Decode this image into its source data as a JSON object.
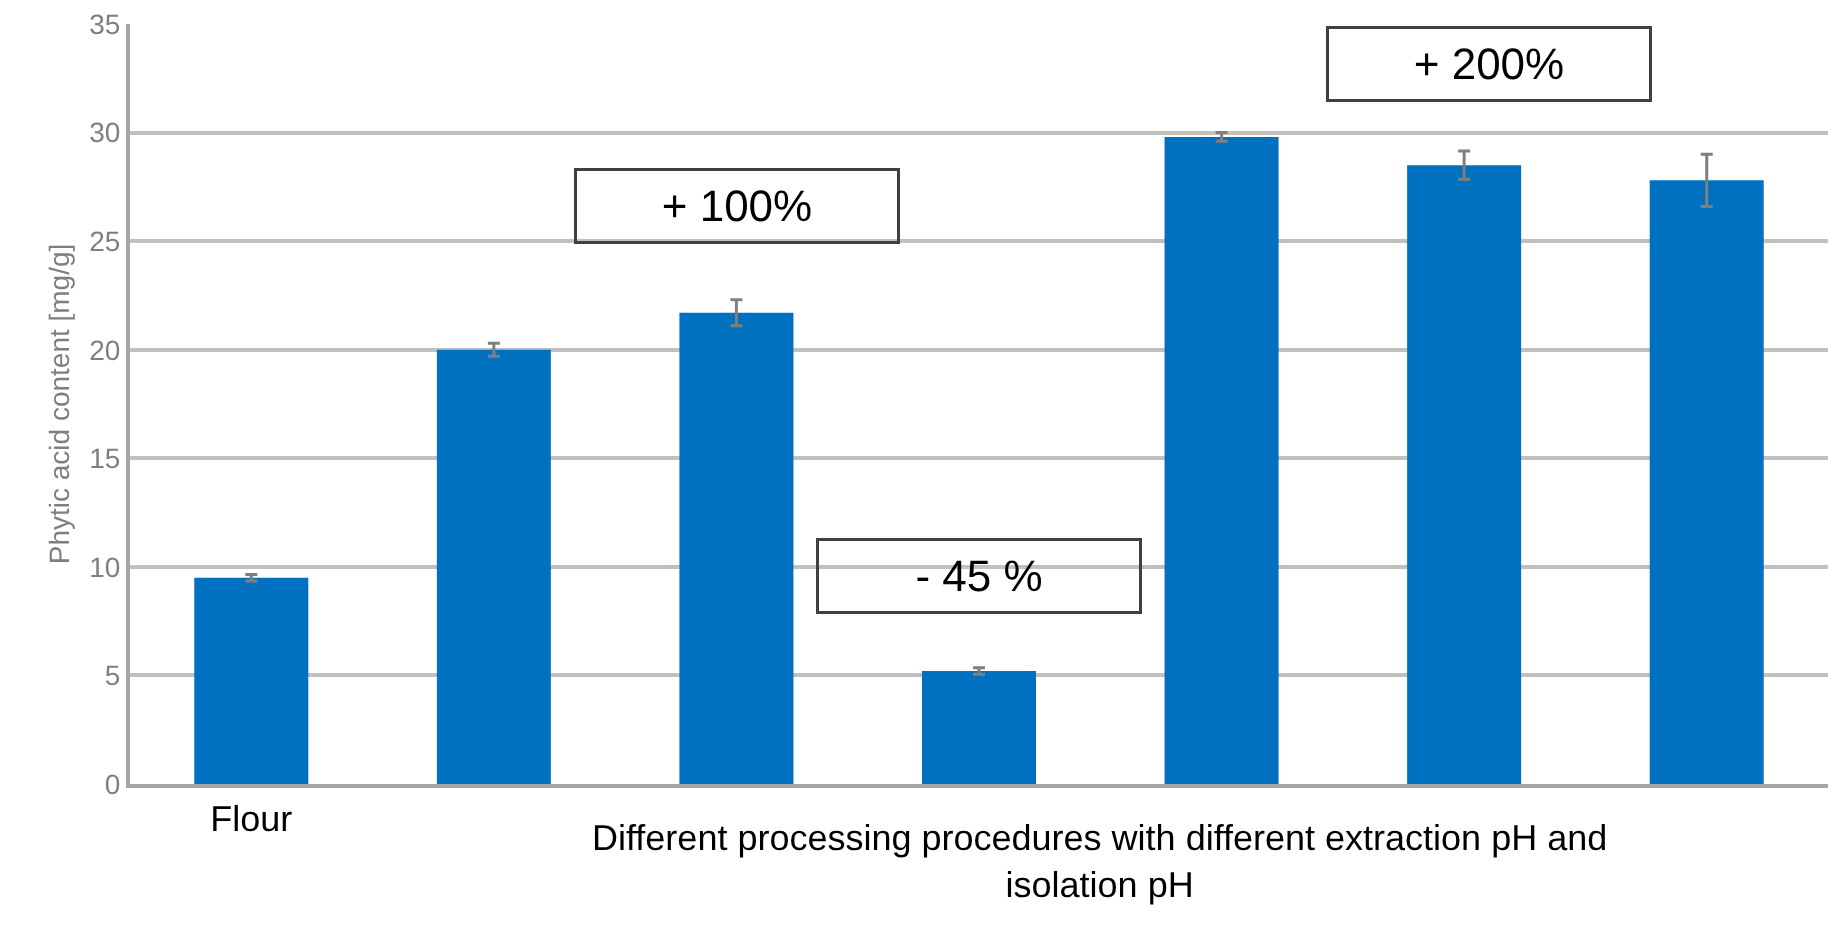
{
  "chart_data": {
    "type": "bar",
    "ylabel": "Phytic acid content [mg/g]",
    "categories": [
      "Flour",
      null,
      null,
      null,
      null,
      null,
      null
    ],
    "values": [
      9.5,
      20.0,
      21.7,
      5.2,
      29.8,
      28.5,
      27.8
    ],
    "errors": [
      0.15,
      0.3,
      0.6,
      0.15,
      0.2,
      0.65,
      1.2
    ],
    "color": "#0070c0",
    "ylim": [
      0,
      35
    ],
    "yticks": [
      0,
      5,
      10,
      15,
      20,
      25,
      30,
      35
    ],
    "grid": "y",
    "legend": false,
    "annotations": [
      "+ 100%",
      "- 45 %",
      "+ 200%",
      "Different processing procedures with different extraction pH and isolation pH"
    ]
  }
}
